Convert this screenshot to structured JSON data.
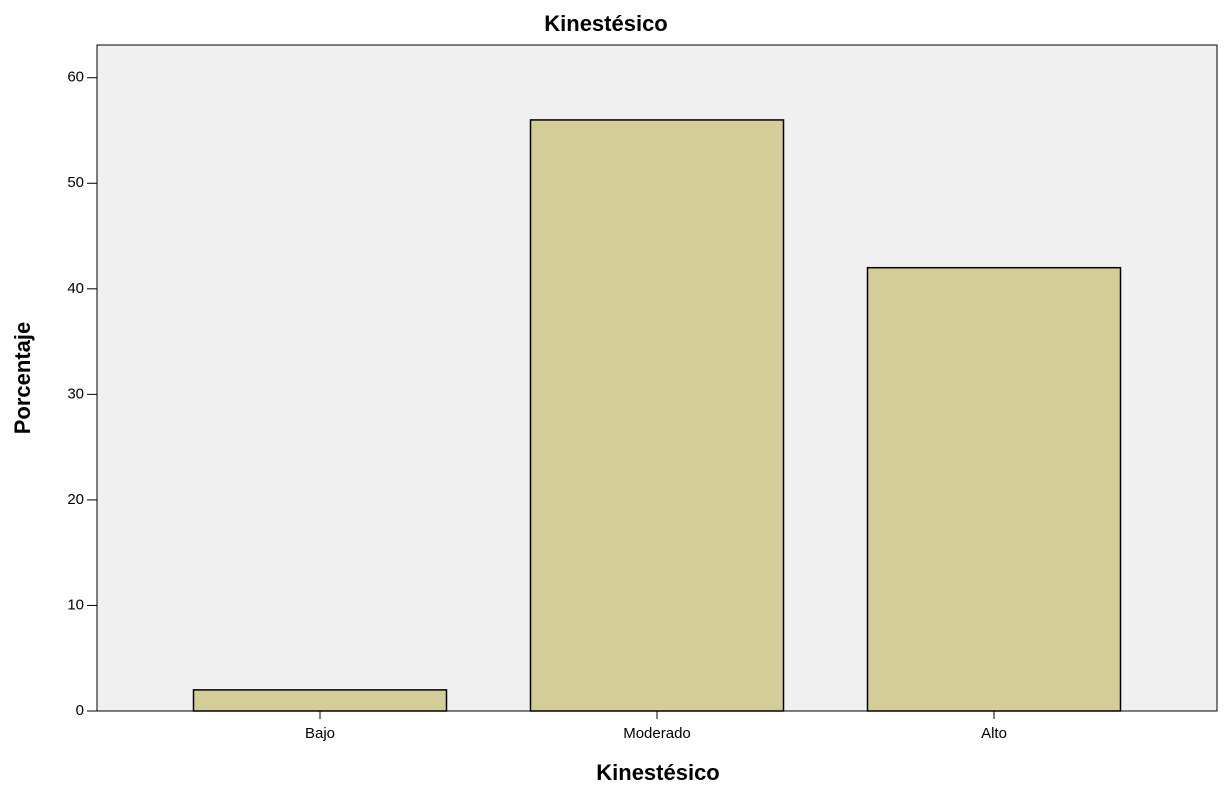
{
  "chart_data": {
    "type": "bar",
    "title": "Kinestésico",
    "x_label": "Kinestésico",
    "y_label": "Porcentaje",
    "categories": [
      "Bajo",
      "Moderado",
      "Alto"
    ],
    "values": [
      2,
      56,
      42
    ],
    "color": "#d3cd98",
    "ylim": [
      0,
      63.1
    ],
    "yticks": [
      0,
      10,
      20,
      30,
      40,
      50,
      60
    ],
    "grid": false
  }
}
